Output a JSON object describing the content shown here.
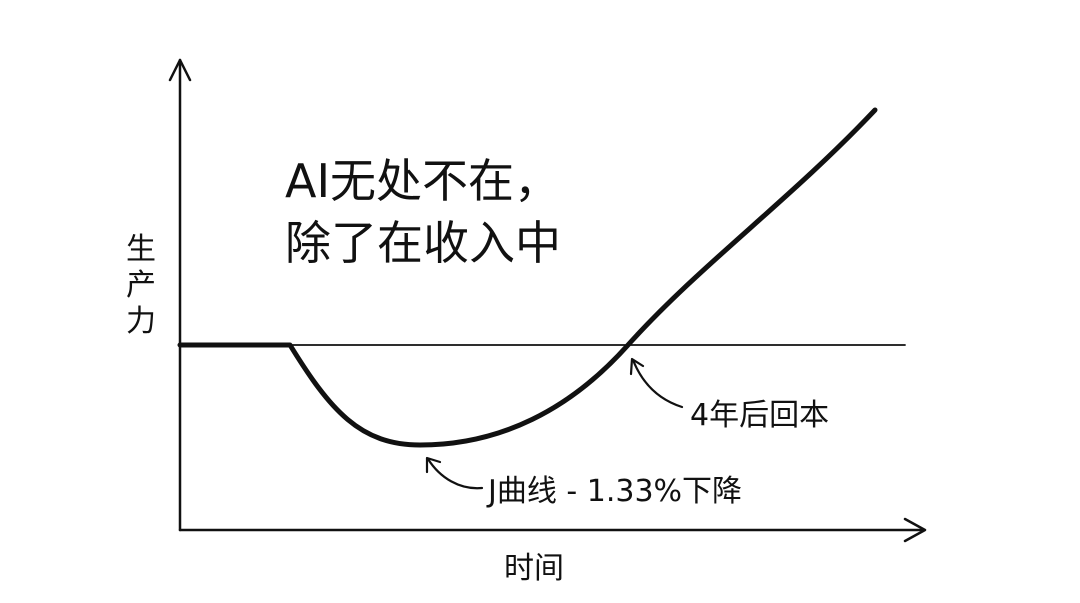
{
  "title_lines": [
    "AI无处不在，",
    "除了在收入中"
  ],
  "y_axis_label": "生产力",
  "x_axis_label": "时间",
  "annotations": {
    "payback": "4年后回本",
    "j_curve": "J曲线 - 1.33%下降"
  },
  "line_color": "#111111",
  "background": "#ffffff"
}
